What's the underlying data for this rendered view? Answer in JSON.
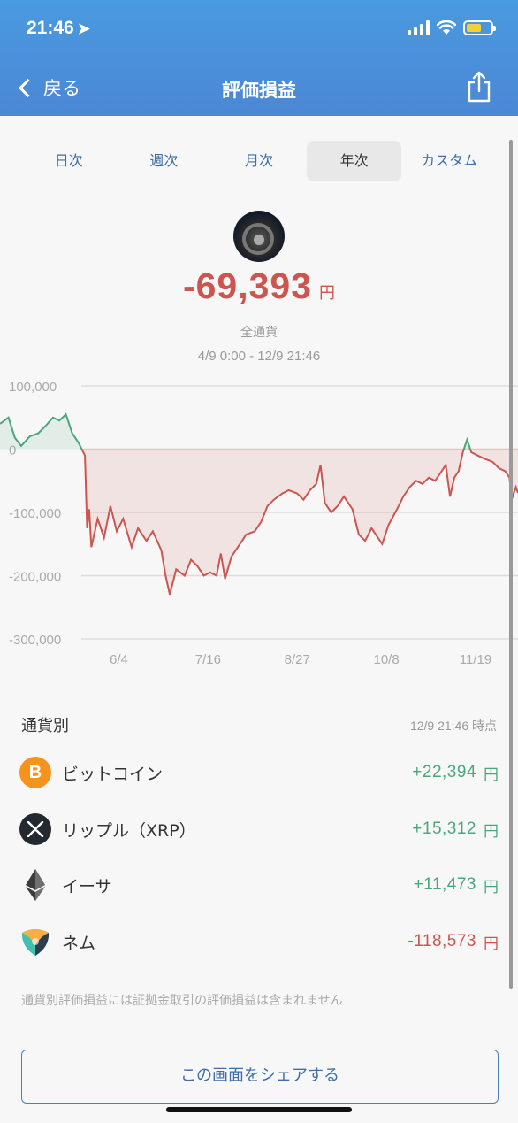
{
  "status": {
    "time": "21:46"
  },
  "nav": {
    "back_label": "戻る",
    "title": "評価損益"
  },
  "tabs": [
    "日次",
    "週次",
    "月次",
    "年次",
    "カスタム"
  ],
  "active_tab": "年次",
  "summary": {
    "amount": "-69,393",
    "unit": "円",
    "scope": "全通貨",
    "range": "4/9 0:00 - 12/9 21:46"
  },
  "chart_data": {
    "type": "area",
    "y_ticks": [
      "100,000",
      "0",
      "-100,000",
      "-200,000",
      "-300,000"
    ],
    "y_tick_values": [
      100000,
      0,
      -100000,
      -200000,
      -300000
    ],
    "x_ticks": [
      "6/4",
      "7/16",
      "8/27",
      "10/8",
      "11/19"
    ],
    "ylim": [
      -300000,
      100000
    ],
    "xlim": [
      "2019-04-09",
      "2019-12-09"
    ],
    "positive_color": "#4aa77d",
    "negative_color": "#cc5550",
    "series": [
      {
        "points": [
          [
            "2019-04-09",
            40000
          ],
          [
            "2019-04-13",
            50000
          ],
          [
            "2019-04-16",
            18000
          ],
          [
            "2019-04-19",
            5000
          ],
          [
            "2019-04-23",
            20000
          ],
          [
            "2019-04-27",
            25000
          ],
          [
            "2019-04-30",
            35000
          ],
          [
            "2019-05-04",
            50000
          ],
          [
            "2019-05-07",
            45000
          ],
          [
            "2019-05-10",
            55000
          ],
          [
            "2019-05-13",
            25000
          ],
          [
            "2019-05-16",
            10000
          ],
          [
            "2019-05-19",
            -10000
          ],
          [
            "2019-05-20",
            -125000
          ],
          [
            "2019-05-21",
            -95000
          ],
          [
            "2019-05-22",
            -155000
          ],
          [
            "2019-05-25",
            -110000
          ],
          [
            "2019-05-28",
            -140000
          ],
          [
            "2019-05-31",
            -90000
          ],
          [
            "2019-06-03",
            -130000
          ],
          [
            "2019-06-06",
            -110000
          ],
          [
            "2019-06-10",
            -155000
          ],
          [
            "2019-06-13",
            -125000
          ],
          [
            "2019-06-17",
            -145000
          ],
          [
            "2019-06-20",
            -130000
          ],
          [
            "2019-06-24",
            -160000
          ],
          [
            "2019-06-26",
            -200000
          ],
          [
            "2019-06-28",
            -230000
          ],
          [
            "2019-07-01",
            -190000
          ],
          [
            "2019-07-05",
            -200000
          ],
          [
            "2019-07-08",
            -175000
          ],
          [
            "2019-07-11",
            -185000
          ],
          [
            "2019-07-14",
            -200000
          ],
          [
            "2019-07-17",
            -195000
          ],
          [
            "2019-07-20",
            -200000
          ],
          [
            "2019-07-22",
            -165000
          ],
          [
            "2019-07-24",
            -205000
          ],
          [
            "2019-07-27",
            -170000
          ],
          [
            "2019-07-31",
            -150000
          ],
          [
            "2019-08-03",
            -135000
          ],
          [
            "2019-08-07",
            -130000
          ],
          [
            "2019-08-10",
            -115000
          ],
          [
            "2019-08-13",
            -90000
          ],
          [
            "2019-08-16",
            -80000
          ],
          [
            "2019-08-20",
            -70000
          ],
          [
            "2019-08-23",
            -65000
          ],
          [
            "2019-08-27",
            -70000
          ],
          [
            "2019-08-30",
            -80000
          ],
          [
            "2019-09-02",
            -65000
          ],
          [
            "2019-09-05",
            -55000
          ],
          [
            "2019-09-07",
            -25000
          ],
          [
            "2019-09-09",
            -85000
          ],
          [
            "2019-09-12",
            -100000
          ],
          [
            "2019-09-15",
            -90000
          ],
          [
            "2019-09-18",
            -75000
          ],
          [
            "2019-09-22",
            -95000
          ],
          [
            "2019-09-25",
            -135000
          ],
          [
            "2019-09-28",
            -145000
          ],
          [
            "2019-10-01",
            -125000
          ],
          [
            "2019-10-04",
            -140000
          ],
          [
            "2019-10-06",
            -150000
          ],
          [
            "2019-10-09",
            -120000
          ],
          [
            "2019-10-13",
            -95000
          ],
          [
            "2019-10-16",
            -75000
          ],
          [
            "2019-10-19",
            -60000
          ],
          [
            "2019-10-22",
            -50000
          ],
          [
            "2019-10-25",
            -55000
          ],
          [
            "2019-10-28",
            -45000
          ],
          [
            "2019-10-31",
            -50000
          ],
          [
            "2019-11-03",
            -35000
          ],
          [
            "2019-11-05",
            -25000
          ],
          [
            "2019-11-07",
            -75000
          ],
          [
            "2019-11-09",
            -45000
          ],
          [
            "2019-11-11",
            -35000
          ],
          [
            "2019-11-13",
            -5000
          ],
          [
            "2019-11-15",
            15000
          ],
          [
            "2019-11-17",
            -5000
          ],
          [
            "2019-11-20",
            -10000
          ],
          [
            "2019-11-23",
            -15000
          ],
          [
            "2019-11-27",
            -20000
          ],
          [
            "2019-11-30",
            -30000
          ],
          [
            "2019-12-03",
            -35000
          ],
          [
            "2019-12-05",
            -45000
          ],
          [
            "2019-12-06",
            -80000
          ],
          [
            "2019-12-08",
            -60000
          ],
          [
            "2019-12-09",
            -69393
          ]
        ]
      }
    ],
    "grid": true
  },
  "breakdown": {
    "title": "通貨別",
    "timestamp": "12/9 21:46 時点",
    "items": [
      {
        "name": "ビットコイン",
        "value": "+22,394",
        "unit": "円",
        "icon": "bitcoin-icon",
        "sign": "pos",
        "color": "#f7931a"
      },
      {
        "name": "リップル（XRP）",
        "value": "+15,312",
        "unit": "円",
        "icon": "xrp-icon",
        "sign": "pos",
        "color": "#23292f"
      },
      {
        "name": "イーサ",
        "value": "+11,473",
        "unit": "円",
        "icon": "ethereum-icon",
        "sign": "pos",
        "color": "#3c3c3d"
      },
      {
        "name": "ネム",
        "value": "-118,573",
        "unit": "円",
        "icon": "nem-icon",
        "sign": "neg",
        "color": "#41bfaf"
      }
    ],
    "note": "通貨別評価損益には証拠金取引の評価損益は含まれません"
  },
  "share_button": "この画面をシェアする"
}
